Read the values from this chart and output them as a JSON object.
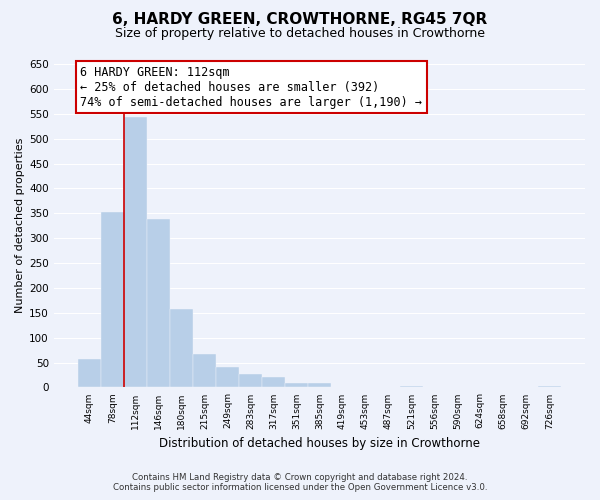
{
  "title": "6, HARDY GREEN, CROWTHORNE, RG45 7QR",
  "subtitle": "Size of property relative to detached houses in Crowthorne",
  "xlabel": "Distribution of detached houses by size in Crowthorne",
  "ylabel": "Number of detached properties",
  "bin_labels": [
    "44sqm",
    "78sqm",
    "112sqm",
    "146sqm",
    "180sqm",
    "215sqm",
    "249sqm",
    "283sqm",
    "317sqm",
    "351sqm",
    "385sqm",
    "419sqm",
    "453sqm",
    "487sqm",
    "521sqm",
    "556sqm",
    "590sqm",
    "624sqm",
    "658sqm",
    "692sqm",
    "726sqm"
  ],
  "bar_values": [
    57,
    352,
    543,
    338,
    157,
    68,
    41,
    26,
    21,
    8,
    8,
    0,
    0,
    0,
    3,
    0,
    0,
    0,
    0,
    0,
    3
  ],
  "bar_color": "#b8cfe8",
  "bar_edge_color": "#9ab8d8",
  "vline_index": 2,
  "vline_color": "#cc0000",
  "annotation_line1": "6 HARDY GREEN: 112sqm",
  "annotation_line2": "← 25% of detached houses are smaller (392)",
  "annotation_line3": "74% of semi-detached houses are larger (1,190) →",
  "annotation_box_color": "#ffffff",
  "annotation_box_edge": "#cc0000",
  "ylim": [
    0,
    650
  ],
  "yticks": [
    0,
    50,
    100,
    150,
    200,
    250,
    300,
    350,
    400,
    450,
    500,
    550,
    600,
    650
  ],
  "footer_line1": "Contains HM Land Registry data © Crown copyright and database right 2024.",
  "footer_line2": "Contains public sector information licensed under the Open Government Licence v3.0.",
  "bg_color": "#eef2fb",
  "plot_bg_color": "#eef2fb",
  "grid_color": "#ffffff",
  "title_fontsize": 11,
  "subtitle_fontsize": 9
}
